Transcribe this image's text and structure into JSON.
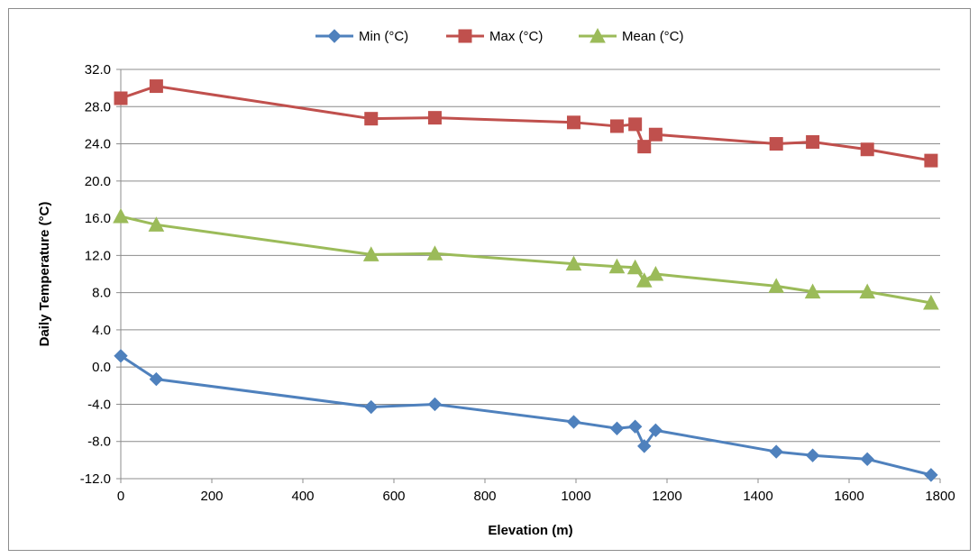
{
  "chart_data": {
    "type": "line",
    "title": "",
    "xlabel": "Elevation (m)",
    "ylabel": "Daily Temperature (°C)",
    "xlim": [
      0,
      1800
    ],
    "ylim": [
      -12,
      32
    ],
    "x_ticks": [
      0,
      200,
      400,
      600,
      800,
      1000,
      1200,
      1400,
      1600,
      1800
    ],
    "x_tick_labels": [
      "0",
      "200",
      "400",
      "600",
      "800",
      "1000",
      "1200",
      "1400",
      "1600",
      "1800"
    ],
    "y_ticks": [
      -12,
      -8,
      -4,
      0,
      4,
      8,
      12,
      16,
      20,
      24,
      28,
      32
    ],
    "y_tick_labels": [
      "-12.0",
      "-8.0",
      "-4.0",
      "0.0",
      "4.0",
      "8.0",
      "12.0",
      "16.0",
      "20.0",
      "24.0",
      "28.0",
      "32.0"
    ],
    "grid": "horizontal",
    "legend_position": "top",
    "x": [
      0,
      78,
      550,
      690,
      995,
      1090,
      1130,
      1150,
      1175,
      1440,
      1520,
      1640,
      1780
    ],
    "series": [
      {
        "name": "Min (°C)",
        "color": "#4f81bd",
        "marker": "diamond",
        "values": [
          1.2,
          -1.3,
          -4.3,
          -4.0,
          -5.9,
          -6.6,
          -6.4,
          -8.5,
          -6.8,
          -9.1,
          -9.5,
          -9.9,
          -11.6
        ]
      },
      {
        "name": "Max (°C)",
        "color": "#c0504d",
        "marker": "square",
        "values": [
          28.9,
          30.2,
          26.7,
          26.8,
          26.3,
          25.9,
          26.1,
          23.7,
          25.0,
          24.0,
          24.2,
          23.4,
          22.2
        ]
      },
      {
        "name": "Mean (°C)",
        "color": "#9bbb59",
        "marker": "triangle",
        "values": [
          16.2,
          15.3,
          12.1,
          12.2,
          11.1,
          10.8,
          10.7,
          9.3,
          10.0,
          8.7,
          8.1,
          8.1,
          6.9
        ]
      }
    ]
  }
}
